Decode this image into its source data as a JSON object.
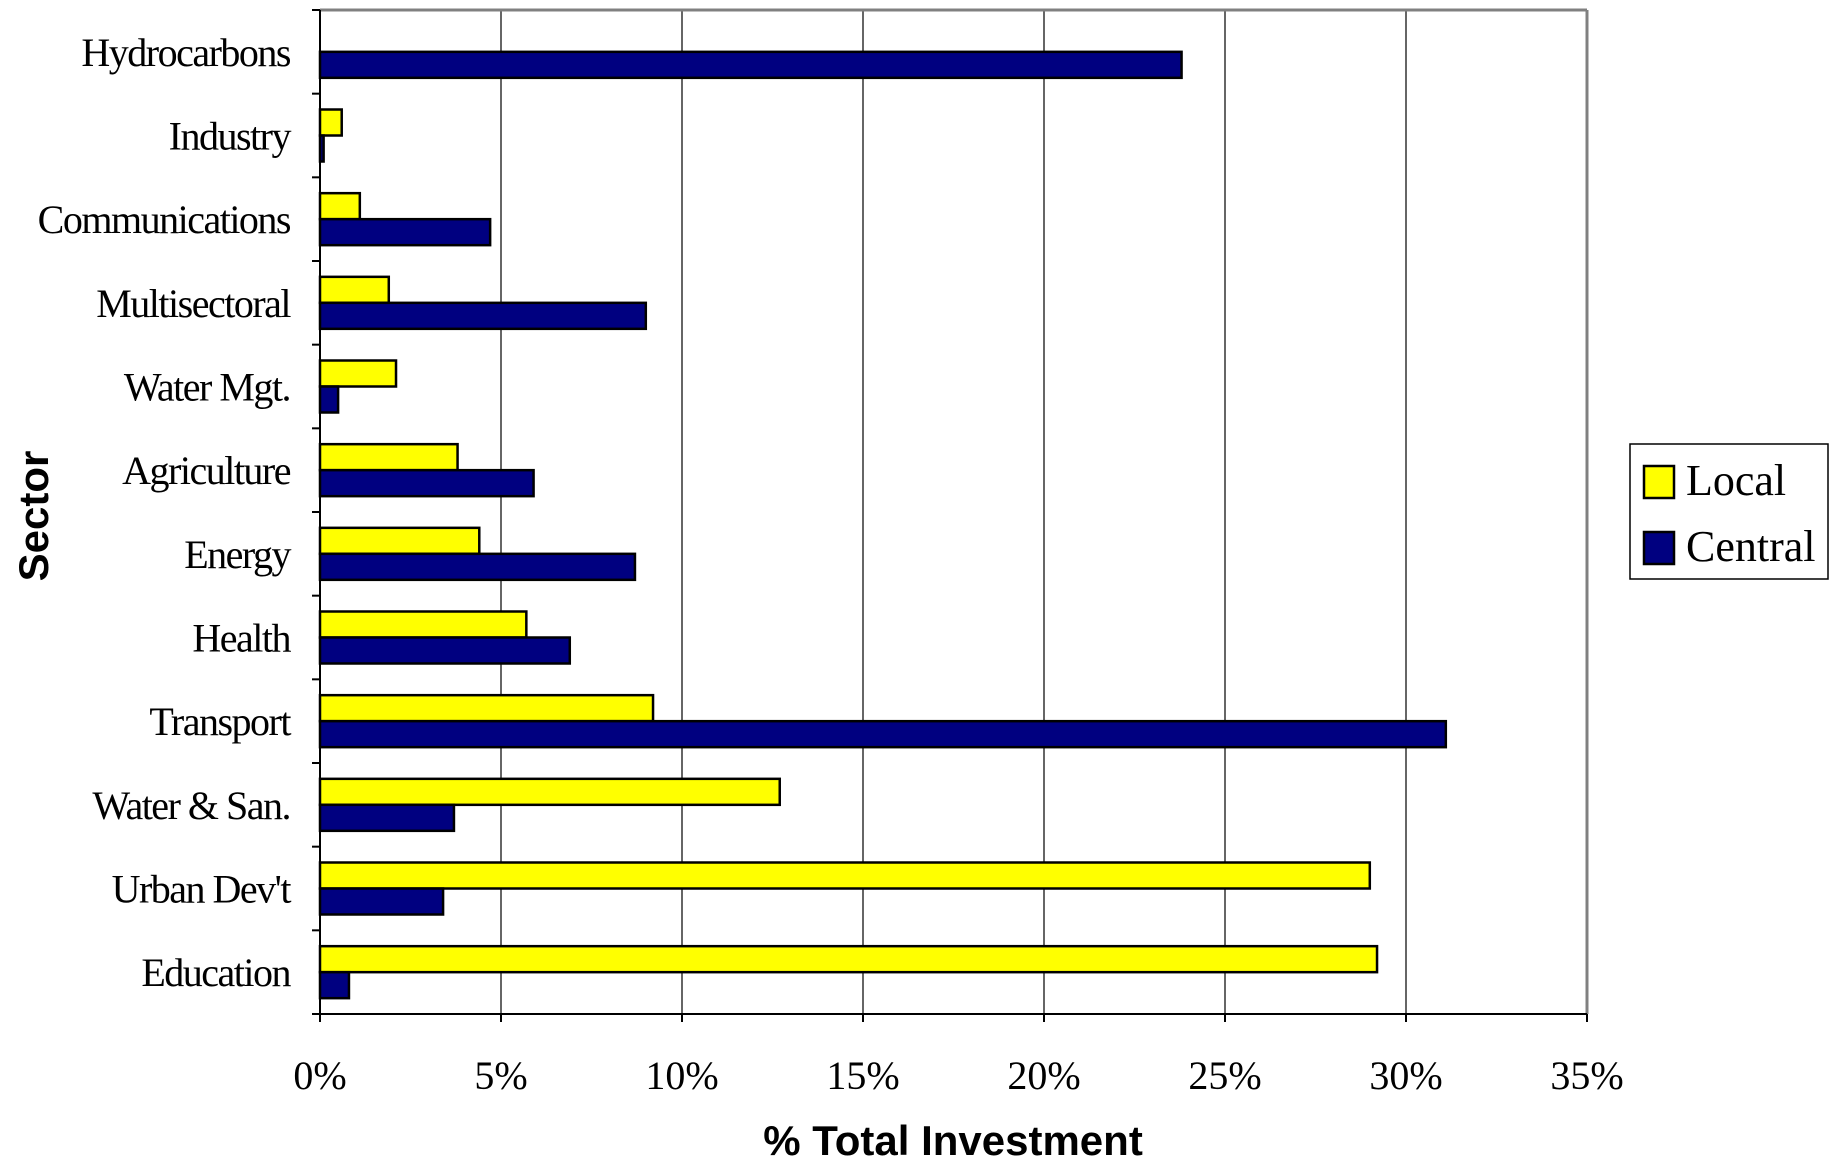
{
  "chart_data": {
    "type": "bar",
    "orientation": "horizontal",
    "title": "",
    "xlabel": "% Total Investment",
    "ylabel": "Sector",
    "xlim": [
      0,
      35
    ],
    "x_ticks": [
      "0%",
      "5%",
      "10%",
      "15%",
      "20%",
      "25%",
      "30%",
      "35%"
    ],
    "categories": [
      "Hydrocarbons",
      "Industry",
      "Communications",
      "Multisectoral",
      "Water Mgt.",
      "Agriculture",
      "Energy",
      "Health",
      "Transport",
      "Water & San.",
      "Urban Dev't",
      "Education"
    ],
    "series": [
      {
        "name": "Local",
        "color": "#ffff00",
        "values": [
          0,
          0.6,
          1.1,
          1.9,
          2.1,
          3.8,
          4.4,
          5.7,
          9.2,
          12.7,
          29.0,
          29.2
        ]
      },
      {
        "name": "Central",
        "color": "#000080",
        "values": [
          23.8,
          0.1,
          4.7,
          9.0,
          0.5,
          5.9,
          8.7,
          6.9,
          31.1,
          3.7,
          3.4,
          0.8
        ]
      }
    ],
    "grid": "vertical",
    "legend_position": "right"
  }
}
